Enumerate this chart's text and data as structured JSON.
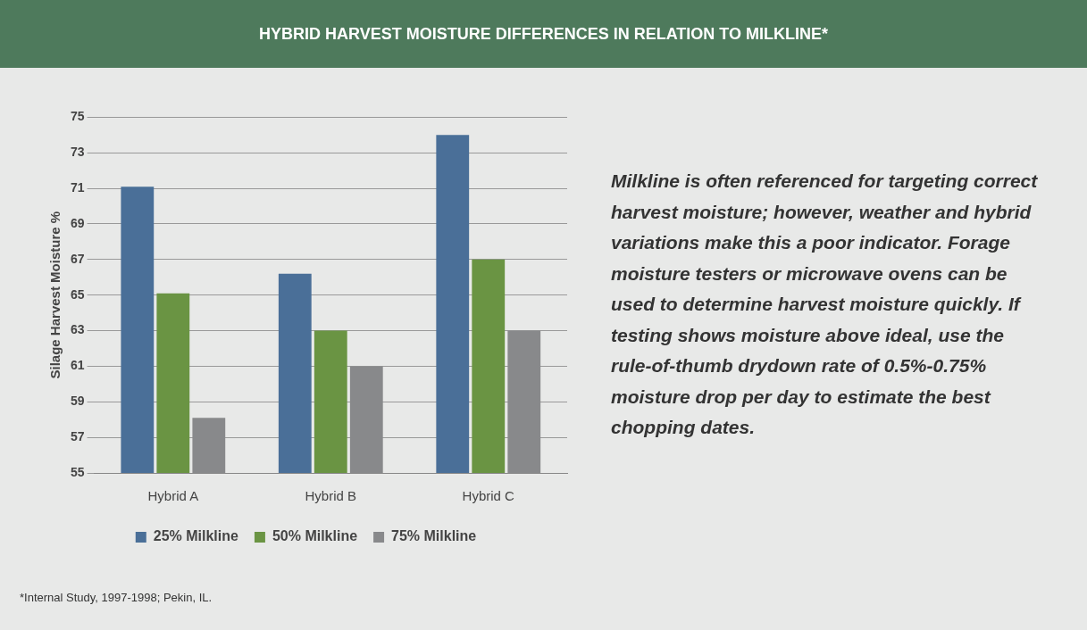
{
  "chart_data": {
    "type": "bar",
    "title": "HYBRID HARVEST MOISTURE DIFFERENCES IN RELATION TO MILKLINE*",
    "ylabel": "Silage Harvest Moisture %",
    "categories": [
      "Hybrid A",
      "Hybrid B",
      "Hybrid C"
    ],
    "series": [
      {
        "name": "25% Milkline",
        "color": "#4a6f98",
        "values": [
          71.1,
          66.2,
          74
        ]
      },
      {
        "name": "50% Milkline",
        "color": "#6a9443",
        "values": [
          65.1,
          63,
          67
        ]
      },
      {
        "name": "75% Milkline",
        "color": "#88898b",
        "values": [
          58.1,
          61,
          63
        ]
      }
    ],
    "ylim": [
      55,
      75
    ],
    "yticks": [
      55,
      57,
      59,
      61,
      63,
      65,
      67,
      69,
      71,
      73,
      75
    ],
    "grid": "y",
    "legend": "bottom",
    "annotations": [
      "Milkline is often referenced for targeting correct harvest moisture; however, weather and hybrid variations make this a poor indicator. Forage moisture testers or microwave ovens can be used to determine harvest moisture quickly. If testing shows moisture above ideal, use the rule-of-thumb drydown rate of 0.5%-0.75% moisture drop per day to estimate the best chopping dates.",
      "*Internal Study, 1997-1998; Pekin, IL."
    ]
  }
}
